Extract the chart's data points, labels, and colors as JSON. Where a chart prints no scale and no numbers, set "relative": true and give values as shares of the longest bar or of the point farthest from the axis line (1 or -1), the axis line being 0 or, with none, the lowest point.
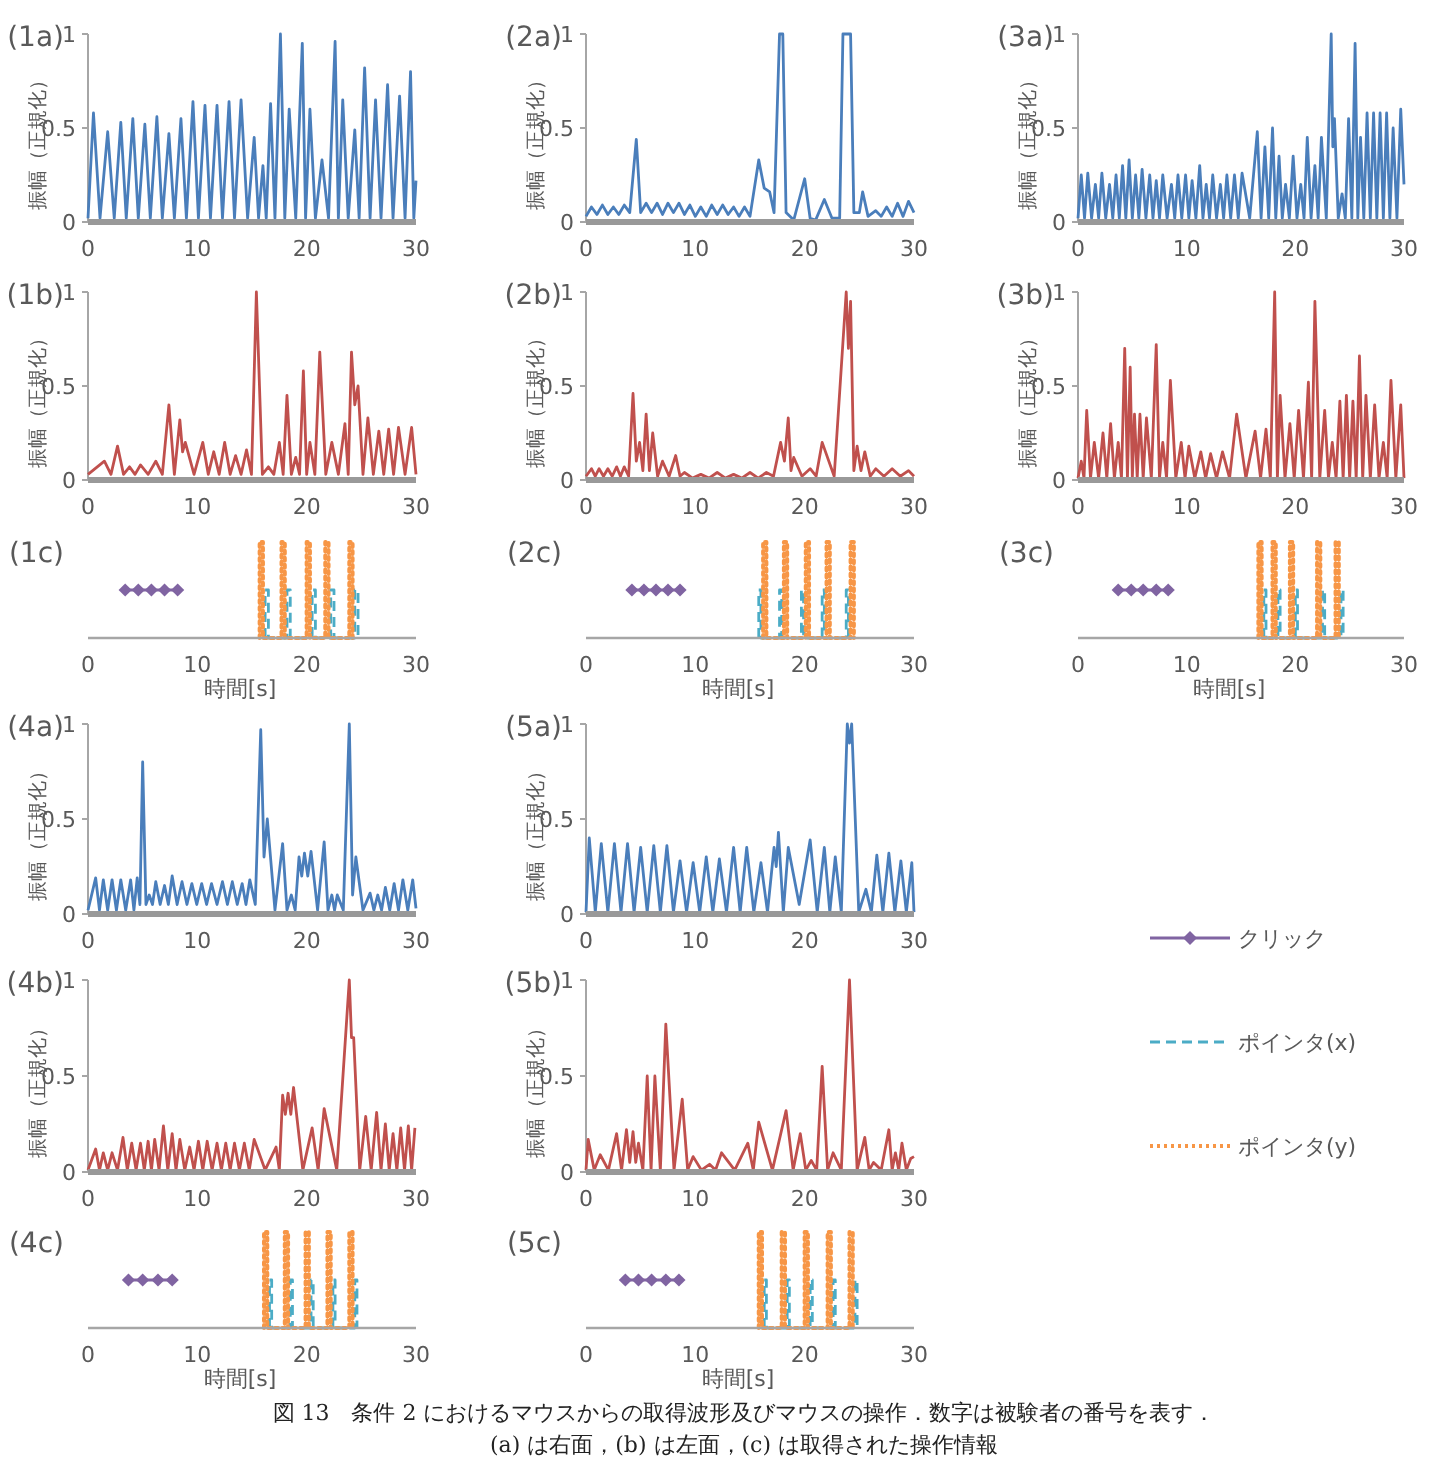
{
  "chart_data": [
    {
      "type": "line",
      "title": "(1a)",
      "ylabel": "振幅（正規化）",
      "xlim": [
        0,
        30
      ],
      "xticks": [
        0,
        10,
        20,
        30
      ],
      "ylim": [
        0,
        1
      ],
      "yticks": [
        0,
        0.5,
        1
      ],
      "x": [
        0,
        0.5,
        1.1,
        1.8,
        2.4,
        3,
        3.5,
        4.1,
        4.6,
        5.2,
        5.7,
        6.3,
        6.8,
        7.4,
        7.9,
        8.5,
        9,
        9.6,
        10.1,
        10.7,
        11.2,
        11.8,
        12.3,
        12.9,
        13.4,
        14,
        14.6,
        15.2,
        15.6,
        16,
        16.3,
        16.7,
        17.1,
        17.6,
        18,
        18.4,
        19,
        19.6,
        19.9,
        20.3,
        20.8,
        21.4,
        22,
        22.6,
        22.9,
        23.3,
        23.8,
        24.4,
        24.8,
        25.3,
        25.8,
        26.3,
        26.8,
        27.4,
        27.9,
        28.5,
        29,
        29.5,
        29.8,
        30
      ],
      "series": [
        {
          "color": "#4a7ebb",
          "values": [
            0.02,
            0.58,
            0.02,
            0.48,
            0.02,
            0.53,
            0.02,
            0.55,
            0.02,
            0.52,
            0.02,
            0.56,
            0.02,
            0.47,
            0.02,
            0.55,
            0.02,
            0.64,
            0.02,
            0.62,
            0.02,
            0.62,
            0.02,
            0.64,
            0.02,
            0.65,
            0.02,
            0.45,
            0.02,
            0.3,
            0.02,
            0.63,
            0.02,
            1,
            0.02,
            0.6,
            0.02,
            0.95,
            0.02,
            0.6,
            0.02,
            0.33,
            0.02,
            0.96,
            0.02,
            0.65,
            0.02,
            0.49,
            0.02,
            0.82,
            0.02,
            0.65,
            0.02,
            0.73,
            0.02,
            0.67,
            0.02,
            0.8,
            0.02,
            0.22
          ]
        }
      ]
    },
    {
      "type": "line",
      "title": "(2a)",
      "ylabel": "振幅（正規化）",
      "xlim": [
        0,
        30
      ],
      "xticks": [
        0,
        10,
        20,
        30
      ],
      "ylim": [
        0,
        1
      ],
      "yticks": [
        0,
        0.5,
        1
      ],
      "x": [
        0,
        0.5,
        1,
        1.5,
        2,
        2.5,
        3,
        3.5,
        4,
        4.6,
        5,
        5.5,
        6,
        6.5,
        7,
        7.5,
        8,
        8.5,
        9,
        9.5,
        10,
        10.5,
        11,
        11.5,
        12,
        12.5,
        13,
        13.5,
        14,
        14.5,
        15,
        15.8,
        16.3,
        16.8,
        17.2,
        17.7,
        18,
        18.3,
        19,
        20,
        20.5,
        21,
        21.8,
        22.5,
        23.2,
        23.5,
        24.2,
        24.5,
        25,
        25.3,
        25.8,
        26.5,
        27,
        27.5,
        28,
        28.5,
        29,
        29.5,
        30
      ],
      "series": [
        {
          "color": "#4a7ebb",
          "values": [
            0.03,
            0.08,
            0.04,
            0.09,
            0.04,
            0.08,
            0.04,
            0.09,
            0.05,
            0.44,
            0.05,
            0.1,
            0.05,
            0.1,
            0.04,
            0.1,
            0.05,
            0.1,
            0.04,
            0.09,
            0.03,
            0.08,
            0.03,
            0.09,
            0.04,
            0.09,
            0.04,
            0.08,
            0.03,
            0.08,
            0.03,
            0.33,
            0.18,
            0.16,
            0.05,
            1,
            1,
            0.05,
            0.01,
            0.23,
            0.02,
            0.01,
            0.12,
            0.02,
            0.02,
            1,
            1,
            0.05,
            0.05,
            0.16,
            0.03,
            0.06,
            0.03,
            0.08,
            0.03,
            0.1,
            0.03,
            0.11,
            0.05
          ]
        }
      ]
    },
    {
      "type": "line",
      "title": "(3a)",
      "ylabel": "振幅（正規化）",
      "xlim": [
        0,
        30
      ],
      "xticks": [
        0,
        10,
        20,
        30
      ],
      "ylim": [
        0,
        1
      ],
      "yticks": [
        0,
        0.5,
        1
      ],
      "x": [
        0,
        0.3,
        0.6,
        0.9,
        1.25,
        1.6,
        1.9,
        2.2,
        2.55,
        2.9,
        3.2,
        3.5,
        3.8,
        4.1,
        4.4,
        4.7,
        5,
        5.3,
        5.6,
        5.9,
        6.25,
        6.6,
        6.9,
        7.2,
        7.5,
        7.8,
        8.2,
        8.6,
        8.9,
        9.2,
        9.55,
        9.9,
        10.2,
        10.5,
        10.85,
        11.2,
        11.5,
        11.8,
        12.1,
        12.4,
        12.75,
        13.1,
        13.4,
        13.7,
        14.05,
        14.4,
        14.75,
        15.1,
        15.8,
        16.5,
        16.85,
        17.2,
        17.55,
        17.9,
        18.2,
        18.5,
        18.8,
        19.1,
        19.45,
        19.8,
        20.15,
        20.5,
        20.8,
        21.1,
        21.45,
        21.8,
        22.1,
        22.4,
        22.85,
        23.3,
        23.45,
        23.6,
        23.95,
        24.3,
        24.6,
        24.9,
        25.2,
        25.5,
        25.75,
        26,
        26.3,
        26.6,
        26.9,
        27.2,
        27.5,
        27.8,
        28.1,
        28.4,
        28.7,
        29,
        29.35,
        29.7,
        30
      ],
      "series": [
        {
          "color": "#4a7ebb",
          "values": [
            0.02,
            0.25,
            0.02,
            0.26,
            0.02,
            0.2,
            0.02,
            0.26,
            0.02,
            0.2,
            0.02,
            0.25,
            0.02,
            0.3,
            0.02,
            0.33,
            0.02,
            0.25,
            0.02,
            0.28,
            0.02,
            0.25,
            0.02,
            0.22,
            0.02,
            0.25,
            0.02,
            0.2,
            0.02,
            0.25,
            0.02,
            0.25,
            0.02,
            0.22,
            0.02,
            0.3,
            0.02,
            0.2,
            0.02,
            0.25,
            0.02,
            0.2,
            0.02,
            0.25,
            0.02,
            0.25,
            0.02,
            0.26,
            0.02,
            0.48,
            0.02,
            0.4,
            0.02,
            0.5,
            0.02,
            0.35,
            0.02,
            0.2,
            0.02,
            0.35,
            0.02,
            0.2,
            0.02,
            0.45,
            0.02,
            0.3,
            0.02,
            0.45,
            0.02,
            1,
            0.4,
            0.55,
            0.02,
            0.15,
            0.02,
            0.55,
            0.02,
            0.95,
            0.02,
            0.45,
            0.02,
            0.58,
            0.02,
            0.58,
            0.02,
            0.58,
            0.02,
            0.58,
            0.02,
            0.5,
            0.02,
            0.6,
            0.2
          ]
        }
      ]
    },
    {
      "type": "line",
      "title": "(1b)",
      "ylabel": "振幅（正規化）",
      "xlim": [
        0,
        30
      ],
      "xticks": [
        0,
        10,
        20,
        30
      ],
      "ylim": [
        0,
        1
      ],
      "yticks": [
        0,
        0.5,
        1
      ],
      "x": [
        0,
        1.5,
        2.1,
        2.7,
        3.25,
        3.8,
        4.3,
        4.8,
        5.5,
        6.2,
        6.8,
        7.4,
        7.9,
        8.4,
        8.65,
        8.9,
        9.7,
        10.5,
        11,
        11.5,
        12,
        12.5,
        13,
        13.5,
        14,
        14.5,
        14.95,
        15.4,
        15.95,
        16.5,
        17,
        17.5,
        17.85,
        18.2,
        18.6,
        19,
        19.35,
        19.7,
        20,
        20.3,
        20.75,
        21.2,
        21.75,
        22.3,
        22.9,
        23.5,
        23.8,
        24.1,
        24.4,
        24.7,
        25.15,
        25.6,
        26.1,
        26.6,
        27.05,
        27.5,
        27.95,
        28.4,
        29,
        29.6,
        30
      ],
      "series": [
        {
          "color": "#c0504d",
          "values": [
            0.03,
            0.1,
            0.03,
            0.18,
            0.03,
            0.07,
            0.03,
            0.08,
            0.03,
            0.1,
            0.03,
            0.4,
            0.03,
            0.32,
            0.15,
            0.2,
            0.03,
            0.2,
            0.03,
            0.15,
            0.03,
            0.2,
            0.03,
            0.13,
            0.03,
            0.16,
            0.03,
            1,
            0.03,
            0.07,
            0.03,
            0.2,
            0.03,
            0.45,
            0.03,
            0.12,
            0.03,
            0.58,
            0.03,
            0.2,
            0.03,
            0.68,
            0.03,
            0.2,
            0.03,
            0.3,
            0.03,
            0.68,
            0.4,
            0.5,
            0.03,
            0.33,
            0.03,
            0.26,
            0.03,
            0.27,
            0.03,
            0.28,
            0.03,
            0.28,
            0.03
          ]
        }
      ]
    },
    {
      "type": "line",
      "title": "(2b)",
      "ylabel": "振幅（正規化）",
      "xlim": [
        0,
        30
      ],
      "xticks": [
        0,
        10,
        20,
        30
      ],
      "ylim": [
        0,
        1
      ],
      "yticks": [
        0,
        0.5,
        1
      ],
      "x": [
        0,
        0.5,
        0.85,
        1.2,
        1.6,
        2,
        2.4,
        2.8,
        3.15,
        3.5,
        3.9,
        4.3,
        4.6,
        4.9,
        5.2,
        5.5,
        5.8,
        6.1,
        6.55,
        7,
        7.6,
        8.2,
        8.6,
        9,
        9.75,
        10.5,
        11.25,
        12,
        12.75,
        13.5,
        14.25,
        15,
        15.75,
        16.5,
        17.15,
        17.8,
        18.15,
        18.5,
        18.75,
        19,
        19.75,
        20.5,
        21.05,
        21.6,
        22.7,
        23.8,
        24,
        24.2,
        24.5,
        24.8,
        25.15,
        25.5,
        26,
        26.5,
        27.25,
        28,
        28.75,
        29.5,
        30
      ],
      "series": [
        {
          "color": "#c0504d",
          "values": [
            0.02,
            0.06,
            0.02,
            0.06,
            0.02,
            0.06,
            0.02,
            0.07,
            0.02,
            0.07,
            0.02,
            0.46,
            0.1,
            0.2,
            0.05,
            0.35,
            0.05,
            0.25,
            0.02,
            0.1,
            0.02,
            0.13,
            0.02,
            0.04,
            0.01,
            0.03,
            0.01,
            0.04,
            0.01,
            0.03,
            0.01,
            0.04,
            0.01,
            0.04,
            0.02,
            0.2,
            0.1,
            0.33,
            0.05,
            0.12,
            0.02,
            0.06,
            0.02,
            0.2,
            0.02,
            1,
            0.7,
            0.95,
            0.05,
            0.18,
            0.05,
            0.15,
            0.02,
            0.06,
            0.02,
            0.06,
            0.02,
            0.05,
            0.02
          ]
        }
      ]
    },
    {
      "type": "line",
      "title": "(3b)",
      "ylabel": "振幅（正規化）",
      "xlim": [
        0,
        30
      ],
      "xticks": [
        0,
        10,
        20,
        30
      ],
      "ylim": [
        0,
        1
      ],
      "yticks": [
        0,
        0.5,
        1
      ],
      "x": [
        0,
        0.3,
        0.55,
        0.8,
        1.15,
        1.5,
        1.9,
        2.3,
        2.65,
        3,
        3.35,
        3.7,
        4,
        4.3,
        4.55,
        4.8,
        5,
        5.2,
        5.45,
        5.7,
        6,
        6.3,
        6.75,
        7.2,
        7.5,
        7.8,
        8.15,
        8.5,
        9,
        9.5,
        9.85,
        10.2,
        10.75,
        11.3,
        11.75,
        12.2,
        12.75,
        13.3,
        13.95,
        14.6,
        15.45,
        16.3,
        16.8,
        17.3,
        17.7,
        18.1,
        18.35,
        18.6,
        19.05,
        19.5,
        19.9,
        20.3,
        20.75,
        21.2,
        21.5,
        21.8,
        22.25,
        22.7,
        23.05,
        23.4,
        23.75,
        24.1,
        24.4,
        24.7,
        25,
        25.3,
        25.6,
        25.9,
        26.2,
        26.5,
        26.9,
        27.3,
        27.7,
        28.1,
        28.45,
        28.8,
        29.25,
        29.7,
        30
      ],
      "series": [
        {
          "color": "#c0504d",
          "values": [
            0.01,
            0.1,
            0.01,
            0.37,
            0.01,
            0.2,
            0.01,
            0.25,
            0.01,
            0.3,
            0.01,
            0.2,
            0.01,
            0.7,
            0.01,
            0.6,
            0.01,
            0.35,
            0.01,
            0.35,
            0.01,
            0.33,
            0.01,
            0.72,
            0.01,
            0.2,
            0.01,
            0.53,
            0.01,
            0.2,
            0.01,
            0.18,
            0.01,
            0.15,
            0.01,
            0.14,
            0.01,
            0.15,
            0.01,
            0.35,
            0.01,
            0.26,
            0.01,
            0.27,
            0.01,
            1,
            0.01,
            0.45,
            0.01,
            0.3,
            0.01,
            0.37,
            0.01,
            0.52,
            0.01,
            0.95,
            0.01,
            0.37,
            0.01,
            0.2,
            0.01,
            0.42,
            0.01,
            0.45,
            0.01,
            0.42,
            0.01,
            0.66,
            0.01,
            0.45,
            0.01,
            0.4,
            0.01,
            0.2,
            0.01,
            0.53,
            0.01,
            0.4,
            0.01
          ]
        }
      ]
    },
    {
      "type": "line",
      "title": "(1c)",
      "xlabel": "時間[s]",
      "relative": true,
      "xlim": [
        0,
        30
      ],
      "xticks": [
        0,
        10,
        20,
        30
      ],
      "series": [
        {
          "color": "#8064a2",
          "marker": "diamond",
          "line_style": "solid",
          "x": [
            3.4,
            4.6,
            5.8,
            7.0,
            8.2
          ],
          "values": [
            0.5,
            0.5,
            0.5,
            0.5,
            0.5
          ]
        },
        {
          "color": "#4bacc6",
          "line_style": "dashed",
          "x": [
            16.2,
            16.2,
            16.5,
            16.5,
            18.2,
            18.2,
            18.5,
            18.5,
            20.5,
            20.5,
            20.8,
            20.8,
            22.2,
            22.2,
            22.5,
            22.5,
            24.4,
            24.4,
            24.7,
            24.7
          ],
          "values": [
            0,
            0.5,
            0.5,
            0,
            0,
            0.5,
            0.5,
            0,
            0,
            0.5,
            0.5,
            0,
            0,
            0.5,
            0.5,
            0,
            0,
            0.5,
            0.5,
            0
          ]
        },
        {
          "color": "#f79646",
          "line_style": "dotted",
          "x": [
            15.7,
            15.7,
            16,
            16,
            17.7,
            17.7,
            18,
            18,
            20,
            20,
            20.3,
            20.3,
            21.7,
            21.7,
            22,
            22,
            23.9,
            23.9,
            24.2,
            24.2
          ],
          "values": [
            0,
            1,
            1,
            0,
            0,
            1,
            1,
            0,
            0,
            1,
            1,
            0,
            0,
            1,
            1,
            0,
            0,
            1,
            1,
            0
          ]
        }
      ]
    },
    {
      "type": "line",
      "title": "(2c)",
      "xlabel": "時間[s]",
      "relative": true,
      "xlim": [
        0,
        30
      ],
      "xticks": [
        0,
        10,
        20,
        30
      ],
      "series": [
        {
          "color": "#8064a2",
          "marker": "diamond",
          "line_style": "solid",
          "x": [
            4.2,
            5.3,
            6.4,
            7.5,
            8.6
          ],
          "values": [
            0.5,
            0.5,
            0.5,
            0.5,
            0.5
          ]
        },
        {
          "color": "#4bacc6",
          "line_style": "dashed",
          "x": [
            15.8,
            15.8,
            16.0,
            16.0,
            17.7,
            17.7,
            17.9,
            17.9,
            19.7,
            19.7,
            19.9,
            19.9,
            21.6,
            21.6,
            21.8,
            21.8,
            23.8,
            23.8,
            24.0,
            24.0
          ],
          "values": [
            0,
            0.5,
            0.5,
            0,
            0,
            0.5,
            0.5,
            0,
            0,
            0.5,
            0.5,
            0,
            0,
            0.5,
            0.5,
            0,
            0,
            0.5,
            0.5,
            0
          ]
        },
        {
          "color": "#f79646",
          "line_style": "dotted",
          "x": [
            16.2,
            16.2,
            16.5,
            16.5,
            18.1,
            18.1,
            18.4,
            18.4,
            20.1,
            20.1,
            20.4,
            20.4,
            22,
            22,
            22.3,
            22.3,
            24.2,
            24.2,
            24.5,
            24.5
          ],
          "values": [
            0,
            1,
            1,
            0,
            0,
            1,
            1,
            0,
            0,
            1,
            1,
            0,
            0,
            1,
            1,
            0,
            0,
            1,
            1,
            0
          ]
        }
      ]
    },
    {
      "type": "line",
      "title": "(3c)",
      "xlabel": "時間[s]",
      "relative": true,
      "xlim": [
        0,
        30
      ],
      "xticks": [
        0,
        10,
        20,
        30
      ],
      "series": [
        {
          "color": "#8064a2",
          "marker": "diamond",
          "line_style": "solid",
          "x": [
            3.7,
            4.9,
            6.0,
            7.2,
            8.3
          ],
          "values": [
            0.5,
            0.5,
            0.5,
            0.5,
            0.5
          ]
        },
        {
          "color": "#4bacc6",
          "line_style": "dashed",
          "x": [
            17.1,
            17.1,
            17.3,
            17.3,
            18.4,
            18.4,
            18.6,
            18.6,
            20.0,
            20.0,
            20.2,
            20.2,
            22.5,
            22.5,
            22.7,
            22.7,
            24.2,
            24.2,
            24.4,
            24.4
          ],
          "values": [
            0,
            0.5,
            0.5,
            0,
            0,
            0.5,
            0.5,
            0,
            0,
            0.5,
            0.5,
            0,
            0,
            0.5,
            0.5,
            0,
            0,
            0.5,
            0.5,
            0
          ]
        },
        {
          "color": "#f79646",
          "line_style": "dotted",
          "x": [
            16.6,
            16.6,
            16.9,
            16.9,
            17.9,
            17.9,
            18.2,
            18.2,
            19.5,
            19.5,
            19.8,
            19.8,
            22,
            22,
            22.3,
            22.3,
            23.7,
            23.7,
            24,
            24
          ],
          "values": [
            0,
            1,
            1,
            0,
            0,
            1,
            1,
            0,
            0,
            1,
            1,
            0,
            0,
            1,
            1,
            0,
            0,
            1,
            1,
            0
          ]
        }
      ]
    },
    {
      "type": "line",
      "title": "(4a)",
      "ylabel": "振幅（正規化）",
      "xlim": [
        0,
        30
      ],
      "xticks": [
        0,
        10,
        20,
        30
      ],
      "ylim": [
        0,
        1
      ],
      "yticks": [
        0,
        0.5,
        1
      ],
      "x": [
        0,
        0.7,
        1.05,
        1.4,
        1.8,
        2.2,
        2.6,
        3,
        3.45,
        3.9,
        4.2,
        4.5,
        4.75,
        5,
        5.3,
        5.6,
        5.9,
        6.2,
        6.6,
        7,
        7.35,
        7.7,
        8.15,
        8.6,
        9.05,
        9.5,
        9.95,
        10.4,
        10.85,
        11.3,
        11.8,
        12.3,
        12.75,
        13.2,
        13.65,
        14.1,
        14.45,
        14.8,
        15.3,
        15.8,
        16.1,
        16.4,
        17.1,
        17.8,
        18.2,
        18.6,
        18.95,
        19.3,
        19.55,
        19.8,
        20.1,
        20.4,
        21,
        21.6,
        21.95,
        22.3,
        22.55,
        22.8,
        23.35,
        23.9,
        24.2,
        24.5,
        25.15,
        25.8,
        26.15,
        26.5,
        26.85,
        27.2,
        27.6,
        28,
        28.4,
        28.8,
        29.25,
        29.7,
        30
      ],
      "series": [
        {
          "color": "#4a7ebb",
          "values": [
            0.02,
            0.19,
            0.02,
            0.18,
            0.02,
            0.18,
            0.02,
            0.18,
            0.02,
            0.18,
            0.02,
            0.19,
            0.05,
            0.8,
            0.05,
            0.1,
            0.05,
            0.17,
            0.05,
            0.15,
            0.05,
            0.2,
            0.05,
            0.17,
            0.05,
            0.16,
            0.05,
            0.16,
            0.05,
            0.16,
            0.05,
            0.17,
            0.05,
            0.17,
            0.05,
            0.16,
            0.05,
            0.18,
            0.05,
            0.97,
            0.3,
            0.5,
            0.02,
            0.37,
            0.02,
            0.1,
            0.02,
            0.3,
            0.2,
            0.32,
            0.2,
            0.33,
            0.02,
            0.38,
            0.02,
            0.1,
            0.02,
            0.1,
            0.02,
            1,
            0.1,
            0.3,
            0.02,
            0.11,
            0.02,
            0.1,
            0.02,
            0.14,
            0.02,
            0.16,
            0.02,
            0.18,
            0.02,
            0.18,
            0.03
          ]
        }
      ]
    },
    {
      "type": "line",
      "title": "(5a)",
      "ylabel": "振幅（正規化）",
      "xlim": [
        0,
        30
      ],
      "xticks": [
        0,
        10,
        20,
        30
      ],
      "ylim": [
        0,
        1
      ],
      "yticks": [
        0,
        0.5,
        1
      ],
      "x": [
        0,
        0.3,
        0.85,
        1.4,
        2,
        2.6,
        3.2,
        3.8,
        4.4,
        5,
        5.6,
        6.2,
        6.8,
        7.4,
        8,
        8.6,
        9.2,
        9.8,
        10.4,
        11,
        11.6,
        12.2,
        12.85,
        13.5,
        14.1,
        14.7,
        15.35,
        16,
        16.6,
        17.2,
        17.4,
        17.6,
        18.05,
        18.5,
        19.5,
        20.5,
        21.15,
        21.8,
        22.3,
        22.8,
        23.35,
        23.9,
        24.1,
        24.3,
        24.95,
        25.6,
        26.1,
        26.6,
        27.15,
        27.7,
        28.25,
        28.8,
        29.3,
        29.8,
        30
      ],
      "series": [
        {
          "color": "#4a7ebb",
          "values": [
            0.01,
            0.4,
            0.01,
            0.37,
            0.01,
            0.37,
            0.01,
            0.37,
            0.01,
            0.35,
            0.01,
            0.36,
            0.01,
            0.36,
            0.01,
            0.28,
            0.01,
            0.27,
            0.01,
            0.3,
            0.01,
            0.29,
            0.01,
            0.35,
            0.01,
            0.35,
            0.01,
            0.27,
            0.01,
            0.35,
            0.25,
            0.43,
            0.01,
            0.35,
            0.05,
            0.39,
            0.01,
            0.35,
            0.01,
            0.3,
            0.01,
            1,
            0.9,
            1,
            0.01,
            0.13,
            0.01,
            0.31,
            0.01,
            0.32,
            0.01,
            0.28,
            0.01,
            0.27,
            0.01
          ]
        }
      ]
    },
    {
      "type": "line",
      "title": "(4b)",
      "ylabel": "振幅（正規化）",
      "xlim": [
        0,
        30
      ],
      "xticks": [
        0,
        10,
        20,
        30
      ],
      "ylim": [
        0,
        1
      ],
      "yticks": [
        0,
        0.5,
        1
      ],
      "x": [
        0,
        0.7,
        1.05,
        1.4,
        1.8,
        2.2,
        2.7,
        3.2,
        3.6,
        4,
        4.4,
        4.8,
        5.15,
        5.5,
        5.8,
        6.1,
        6.5,
        6.9,
        7.3,
        7.7,
        8.05,
        8.4,
        8.85,
        9.3,
        9.7,
        10.1,
        10.5,
        10.9,
        11.35,
        11.8,
        12.2,
        12.6,
        13,
        13.4,
        13.85,
        14.3,
        14.75,
        15.2,
        16.2,
        17.2,
        17.5,
        17.8,
        18.05,
        18.3,
        18.55,
        18.8,
        19.65,
        20.5,
        21.05,
        21.6,
        22.75,
        23.9,
        24.1,
        24.3,
        24.85,
        25.4,
        25.9,
        26.4,
        26.8,
        27.2,
        27.55,
        27.9,
        28.25,
        28.6,
        28.95,
        29.3,
        29.6,
        29.9
      ],
      "series": [
        {
          "color": "#c0504d",
          "values": [
            0.01,
            0.12,
            0.01,
            0.1,
            0.01,
            0.1,
            0.01,
            0.18,
            0.01,
            0.15,
            0.01,
            0.15,
            0.01,
            0.16,
            0.01,
            0.17,
            0.01,
            0.24,
            0.01,
            0.2,
            0.01,
            0.17,
            0.01,
            0.13,
            0.01,
            0.16,
            0.01,
            0.16,
            0.01,
            0.15,
            0.01,
            0.15,
            0.01,
            0.15,
            0.01,
            0.15,
            0.01,
            0.17,
            0.01,
            0.13,
            0.01,
            0.4,
            0.3,
            0.41,
            0.3,
            0.44,
            0.01,
            0.23,
            0.01,
            0.33,
            0.01,
            1,
            0.7,
            0.7,
            0.01,
            0.29,
            0.01,
            0.31,
            0.01,
            0.25,
            0.01,
            0.2,
            0.01,
            0.23,
            0.01,
            0.24,
            0.01,
            0.23
          ]
        }
      ]
    },
    {
      "type": "line",
      "title": "(5b)",
      "ylabel": "振幅（正規化）",
      "xlim": [
        0,
        30
      ],
      "xticks": [
        0,
        10,
        20,
        30
      ],
      "ylim": [
        0,
        1
      ],
      "yticks": [
        0,
        0.5,
        1
      ],
      "x": [
        0,
        0.2,
        0.75,
        1.3,
        2.05,
        2.8,
        3.25,
        3.7,
        4,
        4.3,
        4.55,
        4.8,
        5.2,
        5.6,
        5.95,
        6.3,
        6.8,
        7.3,
        8.05,
        8.8,
        9.3,
        9.8,
        10.55,
        11.3,
        11.85,
        12.4,
        13.6,
        14.8,
        15.3,
        15.8,
        17.05,
        18.3,
        18.95,
        19.6,
        20.1,
        20.6,
        21.1,
        21.6,
        22.1,
        22.6,
        23.35,
        24.1,
        24.8,
        25.5,
        25.9,
        26.3,
        27,
        27.7,
        28,
        28.3,
        28.6,
        28.9,
        29.3,
        29.7,
        30
      ],
      "series": [
        {
          "color": "#c0504d",
          "values": [
            0.01,
            0.17,
            0.01,
            0.09,
            0.01,
            0.2,
            0.01,
            0.22,
            0.05,
            0.21,
            0.05,
            0.15,
            0.01,
            0.5,
            0.01,
            0.5,
            0.01,
            0.77,
            0.01,
            0.38,
            0.01,
            0.08,
            0.01,
            0.04,
            0.01,
            0.1,
            0.01,
            0.15,
            0.01,
            0.26,
            0.01,
            0.32,
            0.01,
            0.2,
            0.01,
            0.06,
            0.01,
            0.55,
            0.01,
            0.1,
            0.01,
            1,
            0.01,
            0.18,
            0.01,
            0.05,
            0.01,
            0.22,
            0.01,
            0.1,
            0.01,
            0.15,
            0.01,
            0.07,
            0.08
          ]
        }
      ]
    },
    {
      "type": "line",
      "title": "(4c)",
      "xlabel": "時間[s]",
      "relative": true,
      "xlim": [
        0,
        30
      ],
      "xticks": [
        0,
        10,
        20,
        30
      ],
      "series": [
        {
          "color": "#8064a2",
          "marker": "diamond",
          "line_style": "solid",
          "x": [
            3.7,
            5.0,
            6.4,
            7.7
          ],
          "values": [
            0.5,
            0.5,
            0.5,
            0.5
          ]
        },
        {
          "color": "#4bacc6",
          "line_style": "dashed",
          "x": [
            16.6,
            16.6,
            16.8,
            16.8,
            18.5,
            18.5,
            18.7,
            18.7,
            20.4,
            20.4,
            20.6,
            20.6,
            22.4,
            22.4,
            22.6,
            22.6,
            24.4,
            24.4,
            24.6,
            24.6
          ],
          "values": [
            0,
            0.5,
            0.5,
            0,
            0,
            0.5,
            0.5,
            0,
            0,
            0.5,
            0.5,
            0,
            0,
            0.5,
            0.5,
            0,
            0,
            0.5,
            0.5,
            0
          ]
        },
        {
          "color": "#f79646",
          "line_style": "dotted",
          "x": [
            16.1,
            16.1,
            16.4,
            16.4,
            18,
            18,
            18.3,
            18.3,
            19.9,
            19.9,
            20.2,
            20.2,
            21.9,
            21.9,
            22.2,
            22.2,
            23.9,
            23.9,
            24.2,
            24.2
          ],
          "values": [
            0,
            1,
            1,
            0,
            0,
            1,
            1,
            0,
            0,
            1,
            1,
            0,
            0,
            1,
            1,
            0,
            0,
            1,
            1,
            0
          ]
        }
      ]
    },
    {
      "type": "line",
      "title": "(5c)",
      "xlabel": "時間[s]",
      "relative": true,
      "xlim": [
        0,
        30
      ],
      "xticks": [
        0,
        10,
        20,
        30
      ],
      "legend": "right",
      "annotations": [
        "図 13　条件 2 におけるマウスからの取得波形及びマウスの操作．数字は被験者の番号を表す．",
        "(a) は右面，(b) は左面，(c) は取得された操作情報"
      ],
      "series": [
        {
          "name": "クリック",
          "color": "#8064a2",
          "marker": "diamond",
          "line_style": "solid",
          "x": [
            3.6,
            4.8,
            6.0,
            7.3,
            8.5
          ],
          "values": [
            0.5,
            0.5,
            0.5,
            0.5,
            0.5
          ]
        },
        {
          "name": "ポインタ(x)",
          "color": "#4bacc6",
          "line_style": "dashed",
          "x": [
            16.3,
            16.3,
            16.5,
            16.5,
            18.4,
            18.4,
            18.6,
            18.6,
            20.5,
            20.5,
            20.7,
            20.7,
            22.6,
            22.6,
            22.8,
            22.8,
            24.6,
            24.6,
            24.8,
            24.8
          ],
          "values": [
            0,
            0.5,
            0.5,
            0,
            0,
            0.5,
            0.5,
            0,
            0,
            0.5,
            0.5,
            0,
            0,
            0.5,
            0.5,
            0,
            0,
            0.5,
            0.5,
            0
          ]
        },
        {
          "name": "ポインタ(y)",
          "color": "#f79646",
          "line_style": "dotted",
          "x": [
            15.8,
            15.8,
            16.1,
            16.1,
            17.9,
            17.9,
            18.2,
            18.2,
            20,
            20,
            20.3,
            20.3,
            22.1,
            22.1,
            22.4,
            22.4,
            24.1,
            24.1,
            24.4,
            24.4
          ],
          "values": [
            0,
            1,
            1,
            0,
            0,
            1,
            1,
            0,
            0,
            1,
            1,
            0,
            0,
            1,
            1,
            0,
            0,
            1,
            1,
            0
          ]
        }
      ]
    }
  ]
}
